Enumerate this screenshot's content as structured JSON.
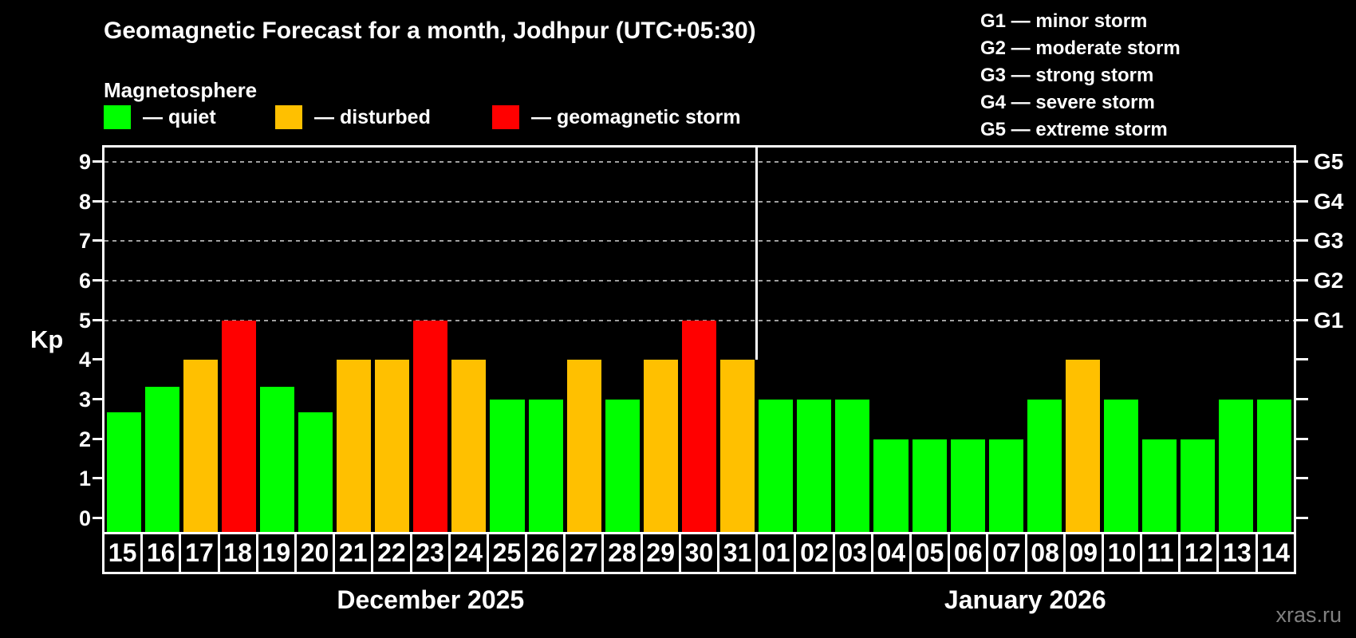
{
  "header": {
    "title": "Geomagnetic Forecast for a month, Jodhpur (UTC+05:30)",
    "subtitle": "Magnetosphere",
    "legend": [
      {
        "key": "quiet",
        "label": "— quiet",
        "color": "#00ff00"
      },
      {
        "key": "disturbed",
        "label": "— disturbed",
        "color": "#ffc000"
      },
      {
        "key": "storm",
        "label": "— geomagnetic storm",
        "color": "#ff0000"
      }
    ],
    "g_scale_legend": [
      "G1 — minor storm",
      "G2 — moderate storm",
      "G3 — strong storm",
      "G4 — severe storm",
      "G5 — extreme storm"
    ]
  },
  "colors": {
    "quiet": "#00ff00",
    "disturbed": "#ffc000",
    "storm": "#ff0000",
    "axis": "#ffffff",
    "grid": "#a0a0a0",
    "watermark": "#808080",
    "background": "#000000"
  },
  "chart_data": {
    "type": "bar",
    "title": "Geomagnetic Forecast for a month, Jodhpur (UTC+05:30)",
    "ylabel": "Kp",
    "ylim": [
      0,
      9
    ],
    "y_ticks": [
      0,
      1,
      2,
      3,
      4,
      5,
      6,
      7,
      8,
      9
    ],
    "gridlines_at": [
      5,
      6,
      7,
      8,
      9
    ],
    "right_axis_labels": [
      {
        "kp": 5,
        "label": "G1"
      },
      {
        "kp": 6,
        "label": "G2"
      },
      {
        "kp": 7,
        "label": "G3"
      },
      {
        "kp": 8,
        "label": "G4"
      },
      {
        "kp": 9,
        "label": "G5"
      }
    ],
    "legend_position": "top-left",
    "months": [
      {
        "label": "December 2025",
        "days": [
          {
            "day": "15",
            "kp": 2.67,
            "status": "quiet"
          },
          {
            "day": "16",
            "kp": 3.33,
            "status": "quiet"
          },
          {
            "day": "17",
            "kp": 4,
            "status": "disturbed"
          },
          {
            "day": "18",
            "kp": 5,
            "status": "storm"
          },
          {
            "day": "19",
            "kp": 3.33,
            "status": "quiet"
          },
          {
            "day": "20",
            "kp": 2.67,
            "status": "quiet"
          },
          {
            "day": "21",
            "kp": 4,
            "status": "disturbed"
          },
          {
            "day": "22",
            "kp": 4,
            "status": "disturbed"
          },
          {
            "day": "23",
            "kp": 5,
            "status": "storm"
          },
          {
            "day": "24",
            "kp": 4,
            "status": "disturbed"
          },
          {
            "day": "25",
            "kp": 3,
            "status": "quiet"
          },
          {
            "day": "26",
            "kp": 3,
            "status": "quiet"
          },
          {
            "day": "27",
            "kp": 4,
            "status": "disturbed"
          },
          {
            "day": "28",
            "kp": 3,
            "status": "quiet"
          },
          {
            "day": "29",
            "kp": 4,
            "status": "disturbed"
          },
          {
            "day": "30",
            "kp": 5,
            "status": "storm"
          },
          {
            "day": "31",
            "kp": 4,
            "status": "disturbed"
          }
        ]
      },
      {
        "label": "January 2026",
        "days": [
          {
            "day": "01",
            "kp": 3,
            "status": "quiet"
          },
          {
            "day": "02",
            "kp": 3,
            "status": "quiet"
          },
          {
            "day": "03",
            "kp": 3,
            "status": "quiet"
          },
          {
            "day": "04",
            "kp": 2,
            "status": "quiet"
          },
          {
            "day": "05",
            "kp": 2,
            "status": "quiet"
          },
          {
            "day": "06",
            "kp": 2,
            "status": "quiet"
          },
          {
            "day": "07",
            "kp": 2,
            "status": "quiet"
          },
          {
            "day": "08",
            "kp": 3,
            "status": "quiet"
          },
          {
            "day": "09",
            "kp": 4,
            "status": "disturbed"
          },
          {
            "day": "10",
            "kp": 3,
            "status": "quiet"
          },
          {
            "day": "11",
            "kp": 2,
            "status": "quiet"
          },
          {
            "day": "12",
            "kp": 2,
            "status": "quiet"
          },
          {
            "day": "13",
            "kp": 3,
            "status": "quiet"
          },
          {
            "day": "14",
            "kp": 3,
            "status": "quiet"
          }
        ]
      }
    ]
  },
  "watermark": "xras.ru"
}
